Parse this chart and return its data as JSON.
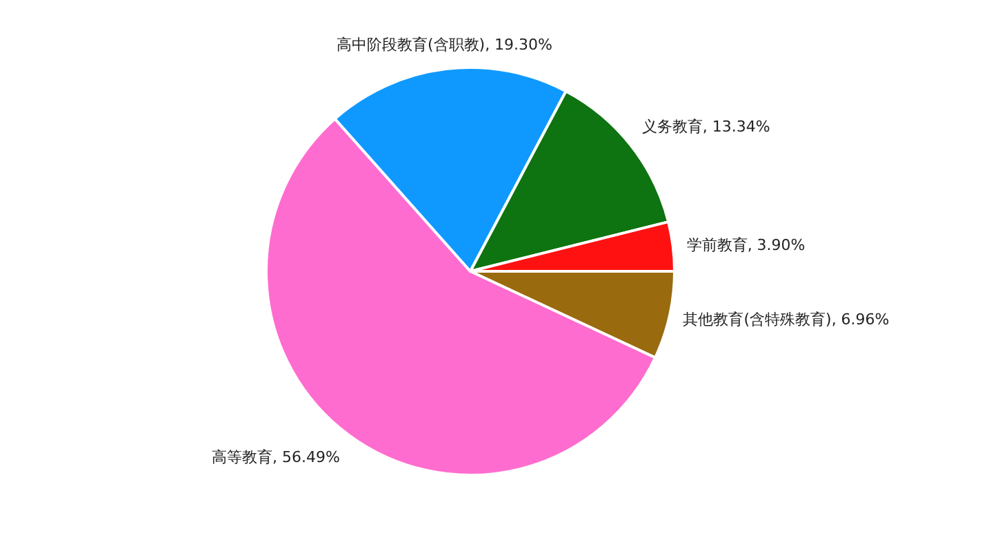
{
  "chart_data": {
    "type": "pie",
    "categories": [
      "其他教育(含特殊教育)",
      "高等教育",
      "高中阶段教育(含职教)",
      "义务教育",
      "学前教育"
    ],
    "values": [
      6.96,
      56.49,
      19.3,
      13.34,
      3.9
    ],
    "value_labels": [
      "6.96%",
      "56.49%",
      "19.30%",
      "13.34%",
      "3.90%"
    ],
    "colors": [
      "#9a6a0e",
      "#ff6ccf",
      "#0f99ff",
      "#0e7311",
      "#ff1111"
    ]
  }
}
